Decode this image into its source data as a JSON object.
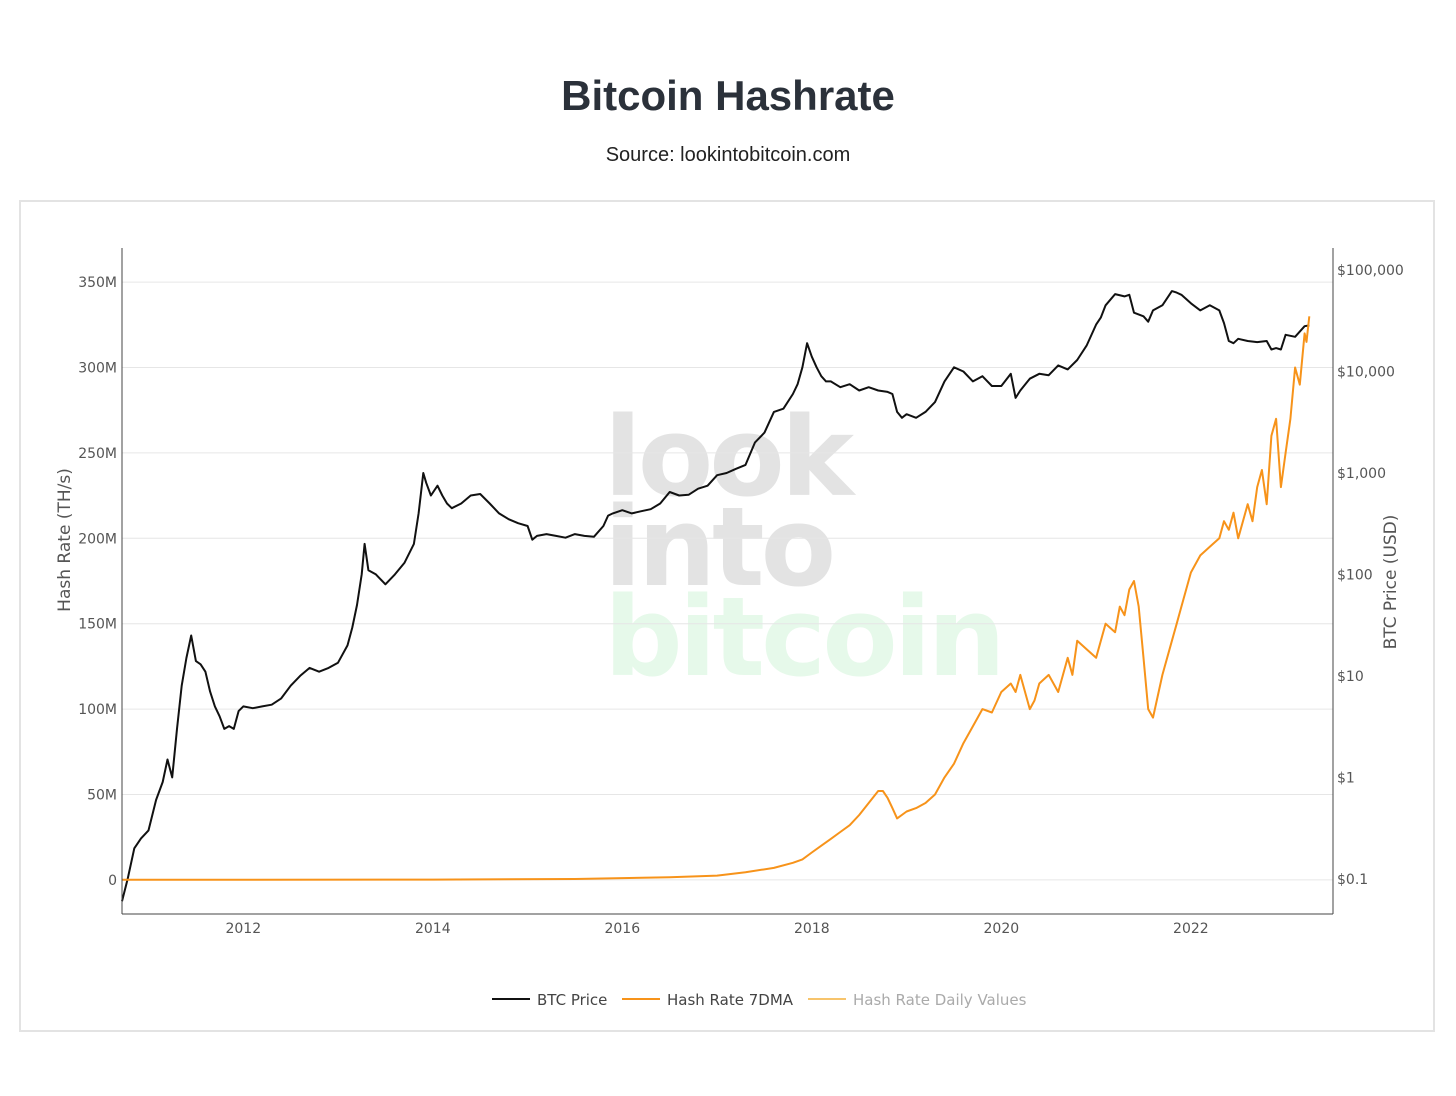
{
  "title": "Bitcoin Hashrate",
  "subtitle": "Source: lookintobitcoin.com",
  "watermark": [
    "look",
    "into",
    "bitcoin"
  ],
  "colors": {
    "btc": "#111111",
    "hash7dma": "#f7931a",
    "hashDaily": "#f7c46c",
    "grid": "#e6e6e6",
    "axis": "#444444",
    "watermarkGray": "#e3e3e3",
    "watermarkGreen": "#e6f9ea"
  },
  "chart_data": {
    "type": "line",
    "title": "Bitcoin Hashrate",
    "subtitle": "Source: lookintobitcoin.com",
    "xlabel": "",
    "xlim": [
      2010.72,
      2023.5
    ],
    "x_ticks": [
      2012,
      2014,
      2016,
      2018,
      2020,
      2022
    ],
    "x_tick_labels": [
      "2012",
      "2014",
      "2016",
      "2018",
      "2020",
      "2022"
    ],
    "y_left": {
      "label": "Hash Rate (TH/s)",
      "range": [
        -20000000,
        370000000
      ],
      "ticks": [
        0,
        50000000,
        100000000,
        150000000,
        200000000,
        250000000,
        300000000,
        350000000
      ],
      "tick_labels": [
        "0",
        "50M",
        "100M",
        "150M",
        "200M",
        "250M",
        "300M",
        "350M"
      ]
    },
    "y_right": {
      "label": "BTC Price (USD)",
      "scale": "log",
      "range": [
        0.045,
        165000
      ],
      "ticks": [
        0.1,
        1,
        10,
        100,
        1000,
        10000,
        100000
      ],
      "tick_labels": [
        "$0.1",
        "$1",
        "$10",
        "$100",
        "$1,000",
        "$10,000",
        "$100,000"
      ]
    },
    "grid": true,
    "legend_position": "bottom-center",
    "series": [
      {
        "name": "BTC Price",
        "axis": "right",
        "x": [
          2010.72,
          2010.78,
          2010.85,
          2010.92,
          2011.0,
          2011.08,
          2011.15,
          2011.2,
          2011.25,
          2011.3,
          2011.35,
          2011.4,
          2011.45,
          2011.5,
          2011.55,
          2011.6,
          2011.65,
          2011.7,
          2011.75,
          2011.8,
          2011.85,
          2011.9,
          2011.95,
          2012.0,
          2012.1,
          2012.2,
          2012.3,
          2012.4,
          2012.5,
          2012.6,
          2012.7,
          2012.8,
          2012.9,
          2013.0,
          2013.1,
          2013.15,
          2013.2,
          2013.25,
          2013.28,
          2013.32,
          2013.4,
          2013.5,
          2013.6,
          2013.7,
          2013.8,
          2013.85,
          2013.9,
          2013.93,
          2013.98,
          2014.05,
          2014.1,
          2014.15,
          2014.2,
          2014.3,
          2014.4,
          2014.5,
          2014.6,
          2014.7,
          2014.8,
          2014.9,
          2015.0,
          2015.05,
          2015.1,
          2015.2,
          2015.3,
          2015.4,
          2015.5,
          2015.6,
          2015.7,
          2015.8,
          2015.85,
          2015.9,
          2016.0,
          2016.1,
          2016.2,
          2016.3,
          2016.4,
          2016.5,
          2016.6,
          2016.7,
          2016.8,
          2016.9,
          2017.0,
          2017.1,
          2017.2,
          2017.3,
          2017.4,
          2017.5,
          2017.6,
          2017.7,
          2017.8,
          2017.85,
          2017.9,
          2017.95,
          2018.0,
          2018.05,
          2018.1,
          2018.15,
          2018.2,
          2018.3,
          2018.4,
          2018.5,
          2018.6,
          2018.7,
          2018.8,
          2018.85,
          2018.9,
          2018.95,
          2019.0,
          2019.1,
          2019.2,
          2019.3,
          2019.4,
          2019.5,
          2019.6,
          2019.7,
          2019.8,
          2019.9,
          2020.0,
          2020.1,
          2020.15,
          2020.2,
          2020.3,
          2020.4,
          2020.5,
          2020.6,
          2020.7,
          2020.8,
          2020.9,
          2021.0,
          2021.05,
          2021.1,
          2021.2,
          2021.3,
          2021.35,
          2021.4,
          2021.5,
          2021.55,
          2021.6,
          2021.7,
          2021.8,
          2021.85,
          2021.9,
          2022.0,
          2022.1,
          2022.2,
          2022.3,
          2022.35,
          2022.4,
          2022.45,
          2022.5,
          2022.6,
          2022.7,
          2022.8,
          2022.85,
          2022.9,
          2022.95,
          2023.0,
          2023.1,
          2023.2,
          2023.25
        ],
        "values": [
          0.06,
          0.1,
          0.2,
          0.25,
          0.3,
          0.6,
          0.9,
          1.5,
          1.0,
          3.0,
          8.0,
          15.0,
          25.0,
          14.0,
          13.0,
          11.0,
          7.0,
          5.0,
          4.0,
          3.0,
          3.2,
          3.0,
          4.5,
          5.0,
          4.8,
          5.0,
          5.2,
          6.0,
          8.0,
          10.0,
          12.0,
          11.0,
          12.0,
          13.5,
          20.0,
          30.0,
          50.0,
          100.0,
          200.0,
          110.0,
          100.0,
          80.0,
          100.0,
          130.0,
          200.0,
          400.0,
          1000.0,
          800.0,
          600.0,
          750.0,
          600.0,
          500.0,
          450.0,
          500.0,
          600.0,
          620.0,
          500.0,
          400.0,
          350.0,
          320.0,
          300.0,
          220.0,
          240.0,
          250.0,
          240.0,
          230.0,
          250.0,
          240.0,
          235.0,
          300.0,
          380.0,
          400.0,
          430.0,
          400.0,
          420.0,
          440.0,
          500.0,
          650.0,
          600.0,
          610.0,
          700.0,
          750.0,
          950.0,
          1000.0,
          1100.0,
          1200.0,
          2000.0,
          2500.0,
          4000.0,
          4300.0,
          6000.0,
          7500.0,
          11000.0,
          19000.0,
          14000.0,
          11000.0,
          9000.0,
          8000.0,
          8000.0,
          7000.0,
          7500.0,
          6500.0,
          7000.0,
          6500.0,
          6300.0,
          6000.0,
          4000.0,
          3500.0,
          3800.0,
          3500.0,
          4000.0,
          5000.0,
          8000.0,
          11000.0,
          10000.0,
          8000.0,
          9000.0,
          7200.0,
          7200.0,
          9500.0,
          5500.0,
          6500.0,
          8500.0,
          9500.0,
          9200.0,
          11500.0,
          10500.0,
          13000.0,
          18000.0,
          29000.0,
          34000.0,
          45000.0,
          58000.0,
          55000.0,
          57000.0,
          38000.0,
          35000.0,
          31000.0,
          40000.0,
          45000.0,
          62000.0,
          60000.0,
          57000.0,
          47000.0,
          40000.0,
          45000.0,
          40000.0,
          30000.0,
          20000.0,
          19000.0,
          21000.0,
          20000.0,
          19500.0,
          20000.0,
          16500.0,
          17000.0,
          16500.0,
          23000.0,
          22000.0,
          28000.0,
          28500.0
        ]
      },
      {
        "name": "Hash Rate 7DMA",
        "axis": "left",
        "x": [
          2010.72,
          2012.0,
          2014.0,
          2015.5,
          2016.5,
          2017.0,
          2017.3,
          2017.6,
          2017.8,
          2017.9,
          2018.0,
          2018.1,
          2018.2,
          2018.3,
          2018.4,
          2018.5,
          2018.6,
          2018.7,
          2018.75,
          2018.8,
          2018.85,
          2018.9,
          2019.0,
          2019.1,
          2019.2,
          2019.3,
          2019.4,
          2019.5,
          2019.6,
          2019.7,
          2019.75,
          2019.8,
          2019.9,
          2020.0,
          2020.1,
          2020.15,
          2020.2,
          2020.3,
          2020.35,
          2020.4,
          2020.5,
          2020.6,
          2020.7,
          2020.75,
          2020.8,
          2020.9,
          2021.0,
          2021.1,
          2021.2,
          2021.25,
          2021.3,
          2021.35,
          2021.4,
          2021.45,
          2021.5,
          2021.55,
          2021.6,
          2021.7,
          2021.8,
          2021.85,
          2021.9,
          2022.0,
          2022.1,
          2022.2,
          2022.3,
          2022.35,
          2022.4,
          2022.45,
          2022.5,
          2022.6,
          2022.65,
          2022.7,
          2022.75,
          2022.8,
          2022.85,
          2022.9,
          2022.95,
          2023.0,
          2023.05,
          2023.1,
          2023.15,
          2023.2,
          2023.22,
          2023.25
        ],
        "values": [
          0,
          10,
          150000,
          500000,
          1500000,
          2500000,
          4500000,
          7000000,
          10000000,
          12000000,
          16000000,
          20000000,
          24000000,
          28000000,
          32000000,
          38000000,
          45000000,
          52000000,
          52000000,
          48000000,
          42000000,
          36000000,
          40000000,
          42000000,
          45000000,
          50000000,
          60000000,
          68000000,
          80000000,
          90000000,
          95000000,
          100000000,
          98000000,
          110000000,
          115000000,
          110000000,
          120000000,
          100000000,
          105000000,
          115000000,
          120000000,
          110000000,
          130000000,
          120000000,
          140000000,
          135000000,
          130000000,
          150000000,
          145000000,
          160000000,
          155000000,
          170000000,
          175000000,
          160000000,
          130000000,
          100000000,
          95000000,
          120000000,
          140000000,
          150000000,
          160000000,
          180000000,
          190000000,
          195000000,
          200000000,
          210000000,
          205000000,
          215000000,
          200000000,
          220000000,
          210000000,
          230000000,
          240000000,
          220000000,
          260000000,
          270000000,
          230000000,
          250000000,
          270000000,
          300000000,
          290000000,
          320000000,
          315000000,
          330000000
        ]
      },
      {
        "name": "Hash Rate Daily Values",
        "axis": "left",
        "hidden": true,
        "x": [],
        "values": []
      }
    ]
  }
}
